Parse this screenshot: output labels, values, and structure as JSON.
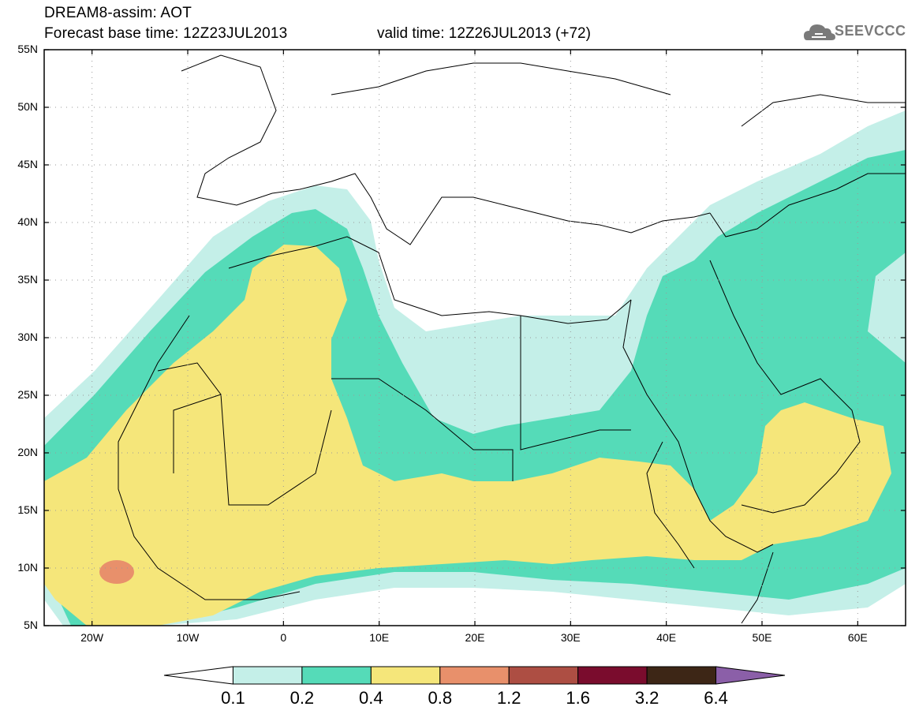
{
  "header": {
    "title": "DREAM8-assim: AOT",
    "base_time": "Forecast base time: 12Z23JUL2013",
    "valid_time": "valid time: 12Z26JUL2013 (+72)",
    "logo_text": "SEEVCCC",
    "logo_icon": "cloud-icon"
  },
  "map": {
    "extent": {
      "lon_min": -25,
      "lon_max": 65,
      "lat_min": 5,
      "lat_max": 55
    },
    "lat_labels": [
      "55N",
      "50N",
      "45N",
      "40N",
      "35N",
      "30N",
      "25N",
      "20N",
      "15N",
      "10N",
      "5N"
    ],
    "lat_values": [
      55,
      50,
      45,
      40,
      35,
      30,
      25,
      20,
      15,
      10,
      5
    ],
    "lon_labels": [
      "20W",
      "10W",
      "0",
      "10E",
      "20E",
      "30E",
      "40E",
      "50E",
      "60E"
    ],
    "lon_values": [
      -20,
      -10,
      0,
      10,
      20,
      30,
      40,
      50,
      60
    ],
    "grid": true
  },
  "colorbar": {
    "labels": [
      "0.1",
      "0.2",
      "0.4",
      "0.8",
      "1.2",
      "1.6",
      "3.2",
      "6.4"
    ],
    "colors": [
      "#ffffff",
      "#c4efe8",
      "#55dbb8",
      "#f5e67a",
      "#e8906b",
      "#ad4e43",
      "#7a0c2d",
      "#3d2616",
      "#8b5fa8"
    ]
  },
  "colors": {
    "level_0_1": "#c4efe8",
    "level_0_2": "#55dbb8",
    "level_0_4": "#f5e67a",
    "level_0_8": "#e8906b"
  }
}
